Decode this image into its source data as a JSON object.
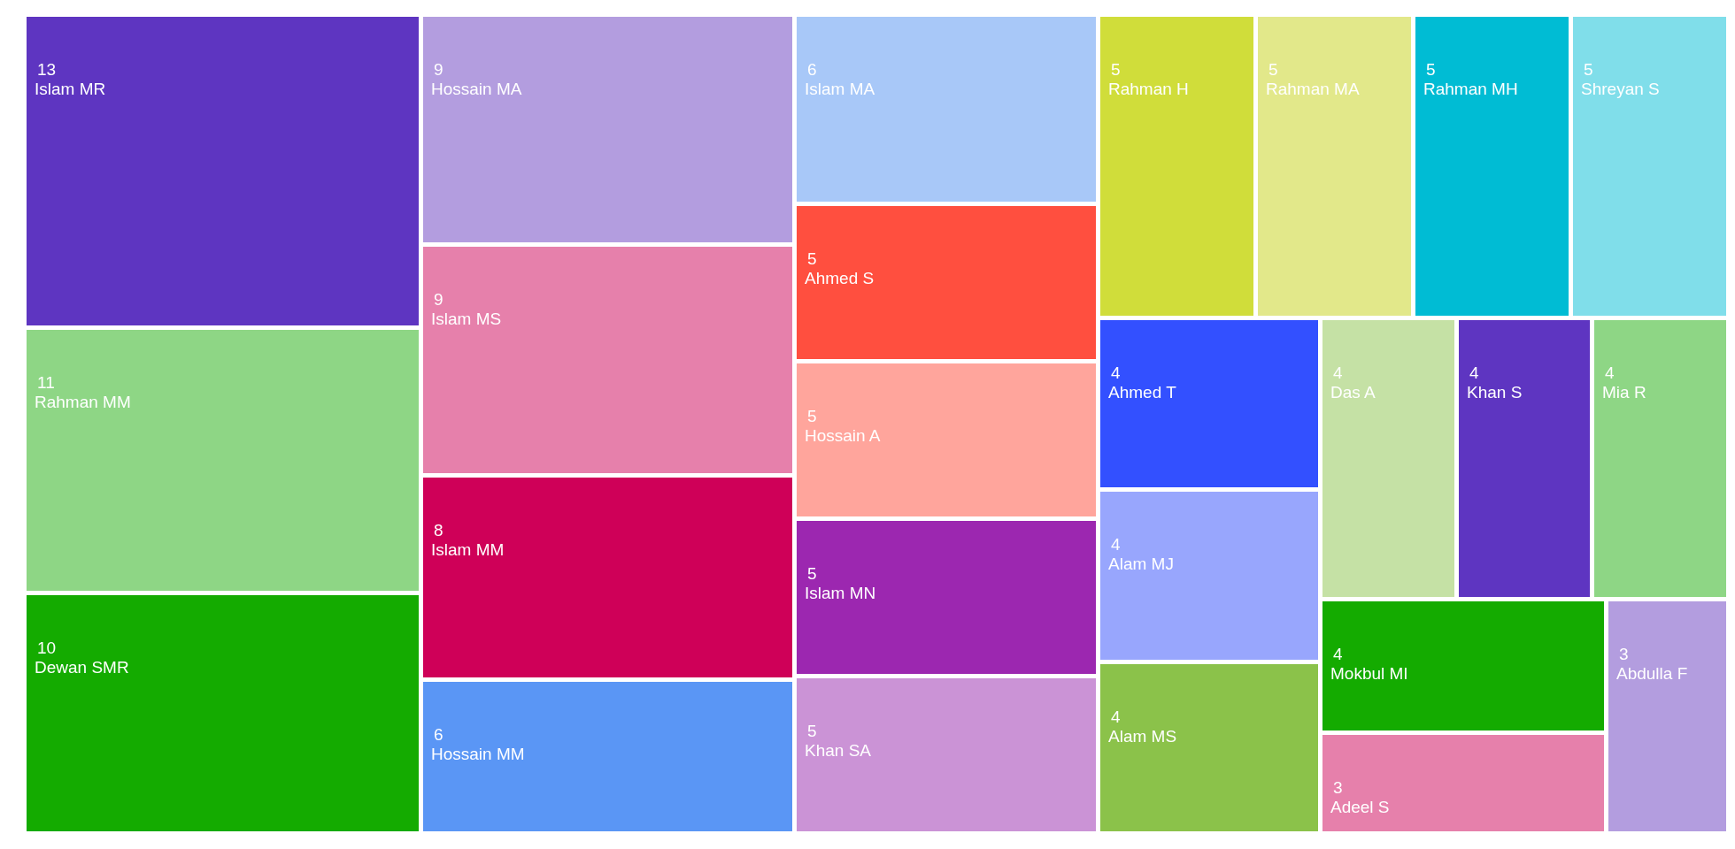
{
  "chart_data": {
    "type": "other",
    "data_labels": true,
    "categories": [
      "Islam MR",
      "Rahman MM",
      "Dewan SMR",
      "Hossain MA",
      "Islam MS",
      "Islam MM",
      "Hossain MM",
      "Islam MA",
      "Ahmed S",
      "Hossain A",
      "Islam MN",
      "Khan SA",
      "Rahman H",
      "Rahman MA",
      "Rahman MH",
      "Shreyan S",
      "Ahmed T",
      "Alam MJ",
      "Alam MS",
      "Das A",
      "Khan S",
      "Mia R",
      "Mokbul MI",
      "Adeel S",
      "Abdulla F"
    ],
    "values": [
      13,
      11,
      10,
      9,
      9,
      8,
      6,
      6,
      5,
      5,
      5,
      5,
      5,
      5,
      5,
      5,
      4,
      4,
      4,
      4,
      4,
      4,
      4,
      3,
      3
    ],
    "colors": [
      "#5e35c1",
      "#8ed685",
      "#14ab00",
      "#b39ddf",
      "#e680ab",
      "#cf0058",
      "#5a96f5",
      "#a8c8f8",
      "#ff4f3f",
      "#ffa59c",
      "#9c27b0",
      "#cb93d6",
      "#d0dd3a",
      "#e2e88a",
      "#00bcd4",
      "#80deea",
      "#3350ff",
      "#98a6fd",
      "#8bc24a",
      "#c5e1a5",
      "#5e35c1",
      "#8ed685",
      "#14ab00",
      "#e680ab",
      "#b39ddf"
    ]
  }
}
